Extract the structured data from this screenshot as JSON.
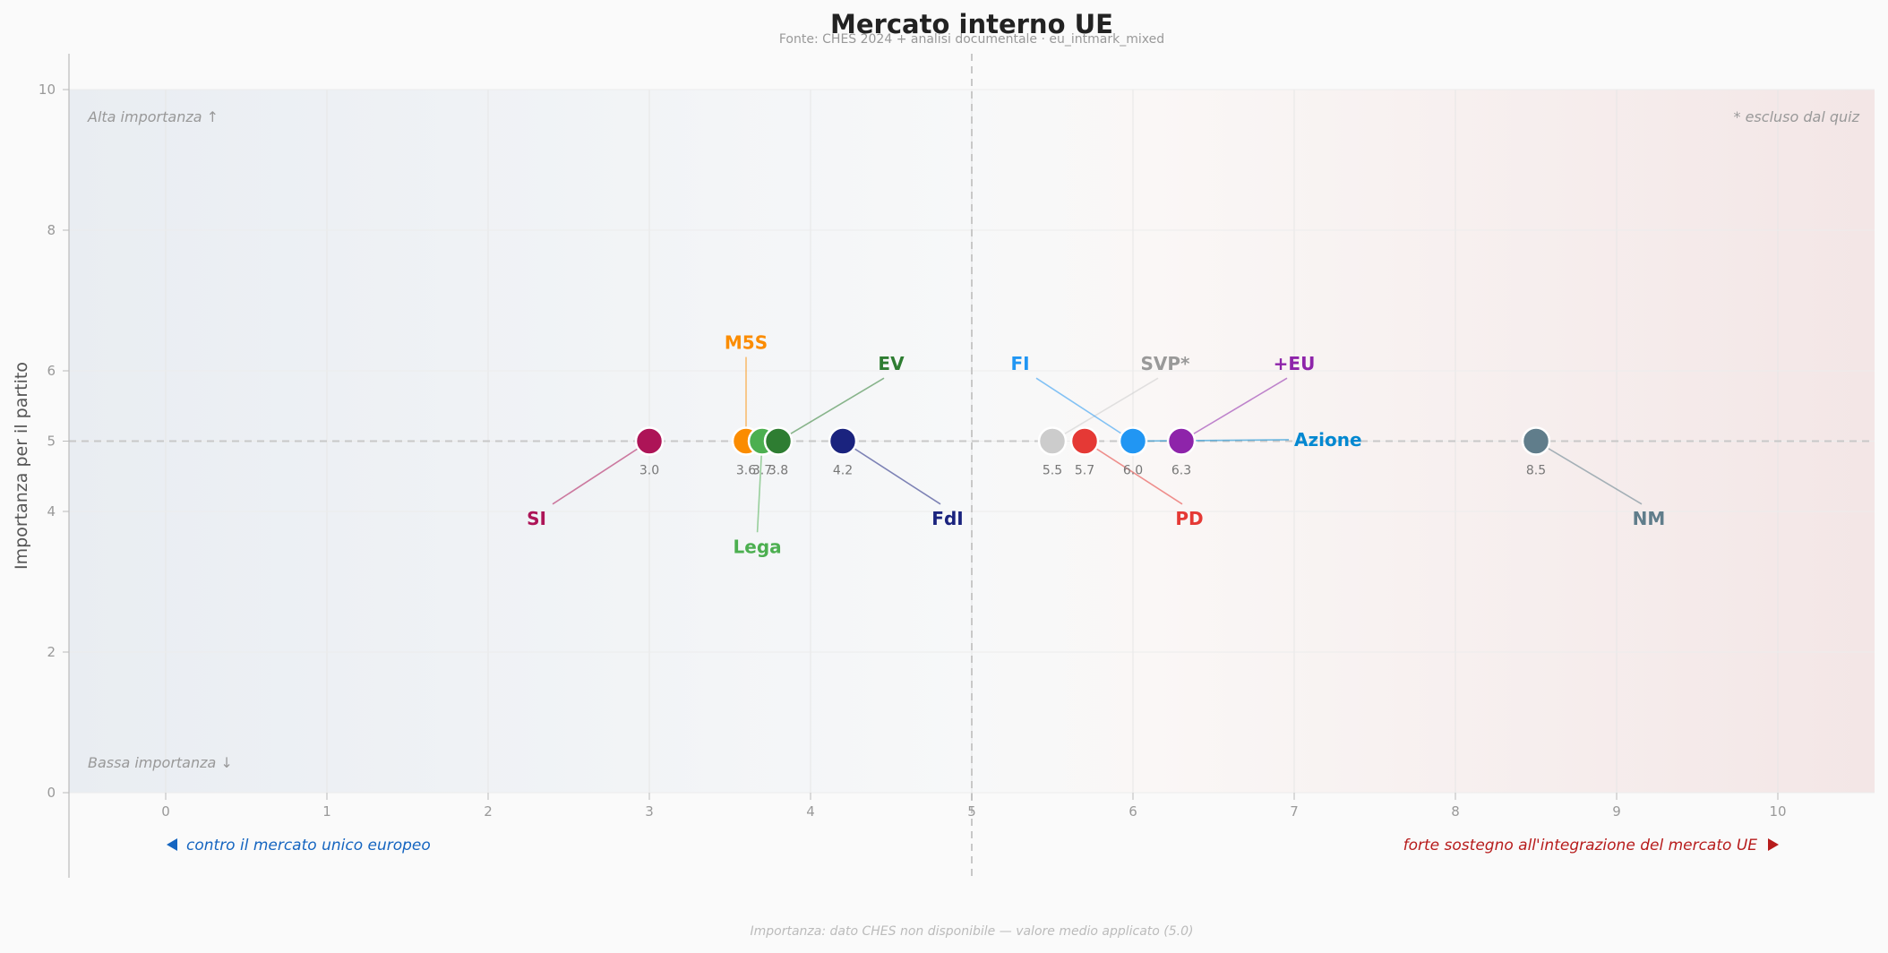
{
  "chart_data": {
    "type": "scatter",
    "title": "Mercato interno UE",
    "subtitle": "Fonte: CHES 2024 + analisi documentale  ·  eu_intmark_mixed",
    "ylabel": "Importanza per il partito",
    "xlim": [
      0,
      10
    ],
    "ylim": [
      0,
      10
    ],
    "x_ticks": [
      "0",
      "1",
      "2",
      "3",
      "4",
      "5",
      "6",
      "7",
      "8",
      "9",
      "10"
    ],
    "y_ticks": [
      "0",
      "2",
      "4",
      "5",
      "6",
      "8",
      "10"
    ],
    "reference_x": 5,
    "reference_y": 5,
    "grid": true,
    "corner_labels": {
      "top_left": "Alta importanza ↑",
      "bottom_left": "Bassa importanza ↓",
      "top_right": "* escluso dal quiz"
    },
    "x_axis_labels": {
      "left": "contro il mercato unico europeo",
      "right": "forte sostegno all'integrazione del mercato UE"
    },
    "footer": "Importanza: dato CHES non disponibile — valore medio applicato (5.0)",
    "points": [
      {
        "name": "SI",
        "x": 3.0,
        "y": 5,
        "value_label": "3.0",
        "color": "#ad1457",
        "label_x": 2.3,
        "label_y": 3.9,
        "muted": false
      },
      {
        "name": "M5S",
        "x": 3.6,
        "y": 5,
        "value_label": "3.6",
        "color": "#fb8c00",
        "label_x": 3.6,
        "label_y": 6.4,
        "muted": false
      },
      {
        "name": "Lega",
        "x": 3.7,
        "y": 5,
        "value_label": "3.7",
        "color": "#4caf50",
        "label_x": 3.67,
        "label_y": 3.5,
        "muted": false
      },
      {
        "name": "EV",
        "x": 3.8,
        "y": 5,
        "value_label": "3.8",
        "color": "#2e7d32",
        "label_x": 4.5,
        "label_y": 6.1,
        "muted": false
      },
      {
        "name": "FdI",
        "x": 4.2,
        "y": 5,
        "value_label": "4.2",
        "color": "#1a237e",
        "label_x": 4.85,
        "label_y": 3.9,
        "muted": false
      },
      {
        "name": "SVP*",
        "x": 5.5,
        "y": 5,
        "value_label": "5.5",
        "color": "#cccccc",
        "label_x": 6.2,
        "label_y": 6.1,
        "muted": true
      },
      {
        "name": "PD",
        "x": 5.7,
        "y": 5,
        "value_label": "5.7",
        "color": "#e53935",
        "label_x": 6.35,
        "label_y": 3.9,
        "muted": false
      },
      {
        "name": "FI",
        "x": 6.0,
        "y": 5,
        "value_label": "6.0",
        "color": "#2196f3",
        "label_x": 5.3,
        "label_y": 6.1,
        "muted": false
      },
      {
        "name": "+EU",
        "x": 6.3,
        "y": 5,
        "value_label": "6.3",
        "color": "#8e24aa",
        "label_x": 7.0,
        "label_y": 6.1,
        "muted": false
      },
      {
        "name": "Azione",
        "x": 6.0,
        "y": 5,
        "value_label": "",
        "color": "#0288d1",
        "label_x": 7.0,
        "label_y": 5.02,
        "muted": false,
        "hidden_marker": true
      },
      {
        "name": "NM",
        "x": 8.5,
        "y": 5,
        "value_label": "8.5",
        "color": "#607d8b",
        "label_x": 9.2,
        "label_y": 3.9,
        "muted": false
      }
    ],
    "colors": {
      "left_axis_label": "#1565c0",
      "right_axis_label": "#b71c1c",
      "muted_label": "#999999"
    }
  }
}
